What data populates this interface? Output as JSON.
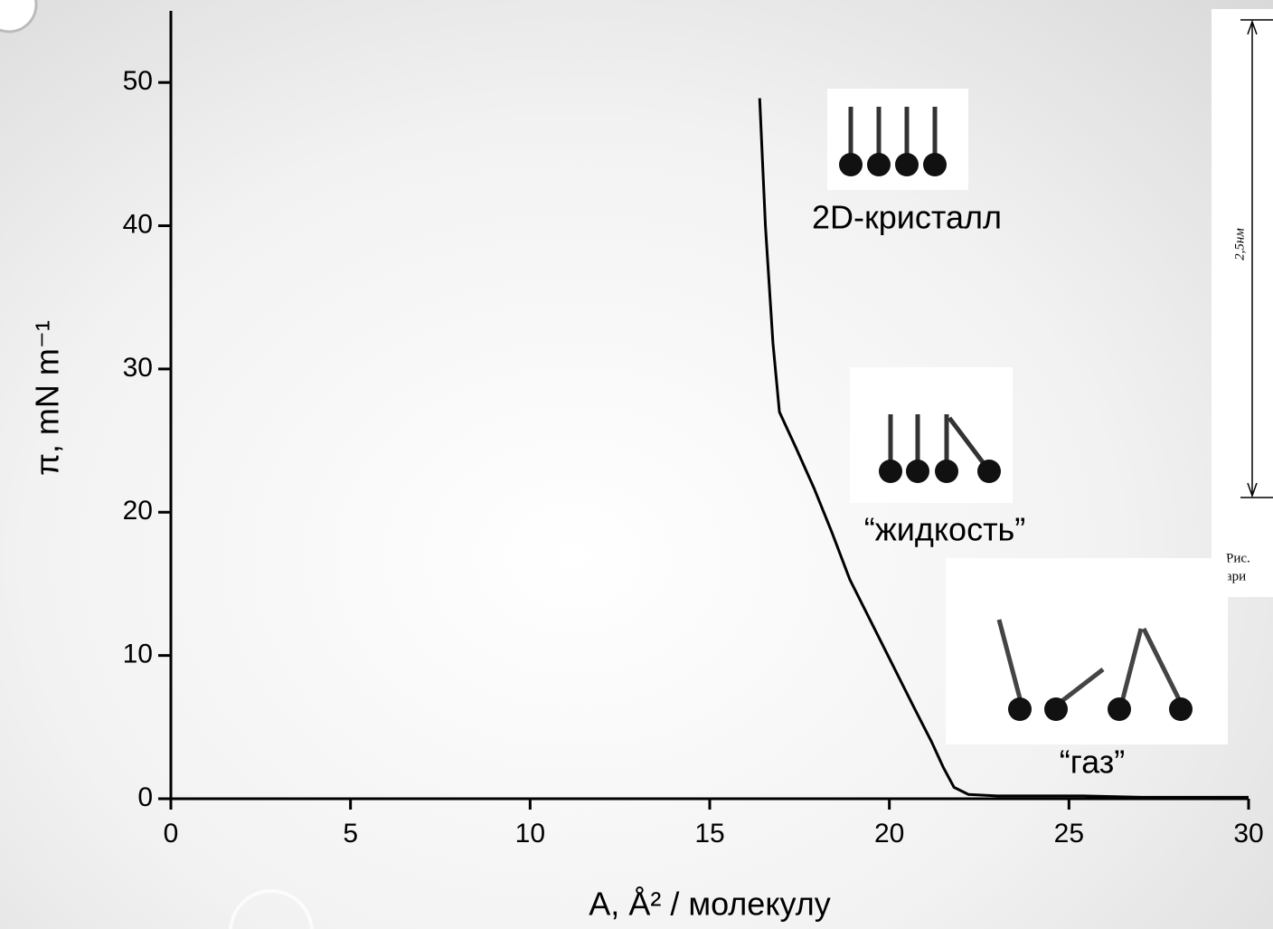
{
  "chart_data": {
    "type": "line",
    "x_label": "A, Å² / молекулу",
    "y_label": "π, mN m⁻¹",
    "x": [
      16.39,
      16.55,
      16.76,
      16.94,
      17.4,
      17.9,
      18.4,
      18.9,
      19.5,
      20.16,
      20.7,
      21.17,
      21.5,
      21.8,
      22.2,
      23.0,
      25.4,
      27.0,
      30.0
    ],
    "values": [
      48.9,
      40.0,
      31.8,
      27.0,
      24.5,
      21.7,
      18.6,
      15.3,
      12.3,
      9.0,
      6.3,
      4.0,
      2.2,
      0.8,
      0.3,
      0.2,
      0.2,
      0.1,
      0.1
    ],
    "color": "#000000",
    "xlim": [
      0,
      30
    ],
    "xticks": [
      0,
      5,
      10,
      15,
      20,
      25,
      30
    ],
    "ylim": [
      0,
      55
    ],
    "yticks": [
      0,
      10,
      20,
      30,
      40,
      50
    ],
    "annotations": [
      "2D-кристалл",
      "“жидкость”",
      "“газ”"
    ]
  },
  "side_figure": {
    "dimension": "2,5нм",
    "caption": [
      "Рис.",
      "ари"
    ]
  }
}
